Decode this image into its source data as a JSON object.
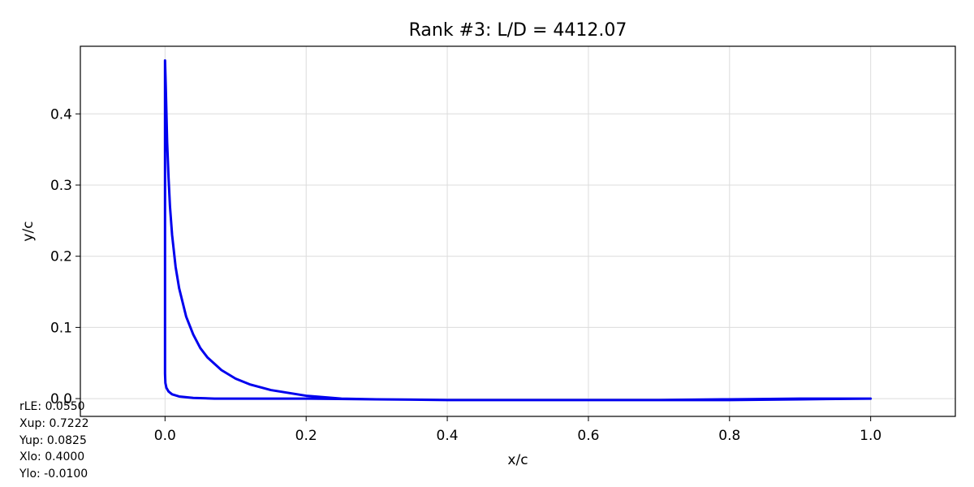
{
  "chart_data": {
    "type": "line",
    "title": "Rank #3: L/D = 4412.07",
    "xlabel": "x/c",
    "ylabel": "y/c",
    "xlim": [
      -0.12,
      1.12
    ],
    "ylim": [
      -0.025,
      0.495
    ],
    "xticks": [
      "0.0",
      "0.2",
      "0.4",
      "0.6",
      "0.8",
      "1.0"
    ],
    "yticks": [
      "0.0",
      "0.1",
      "0.2",
      "0.3",
      "0.4"
    ],
    "grid": true,
    "line_color": "#0000ee",
    "series": [
      {
        "x": [
          1.0,
          0.9,
          0.8,
          0.7,
          0.6,
          0.5,
          0.4,
          0.3,
          0.25,
          0.2,
          0.15,
          0.12,
          0.1,
          0.08,
          0.06,
          0.05,
          0.04,
          0.03,
          0.02,
          0.015,
          0.01,
          0.007,
          0.005,
          0.003,
          0.002,
          0.001,
          0.0,
          0.0,
          0.0,
          0.0,
          0.0005,
          0.002,
          0.005,
          0.01,
          0.02,
          0.04,
          0.07,
          0.1,
          0.15,
          0.2,
          0.3,
          0.4,
          0.5,
          0.6,
          0.7,
          0.8,
          0.9,
          1.0
        ],
        "y": [
          0.0,
          -0.001,
          -0.002,
          -0.002,
          -0.002,
          -0.002,
          -0.002,
          -0.001,
          0.0,
          0.004,
          0.012,
          0.02,
          0.028,
          0.04,
          0.058,
          0.071,
          0.09,
          0.115,
          0.155,
          0.185,
          0.23,
          0.27,
          0.31,
          0.36,
          0.4,
          0.44,
          0.475,
          0.3,
          0.1,
          0.035,
          0.022,
          0.015,
          0.01,
          0.006,
          0.003,
          0.001,
          0.0,
          0.0,
          0.0,
          0.0,
          -0.001,
          -0.002,
          -0.002,
          -0.002,
          -0.002,
          -0.001,
          0.0,
          0.0
        ]
      }
    ]
  },
  "params": {
    "lines": [
      "rLE: 0.0550",
      "Xup: 0.7222",
      "Yup: 0.0825",
      "Xlo: 0.4000",
      "Ylo: -0.0100"
    ]
  }
}
